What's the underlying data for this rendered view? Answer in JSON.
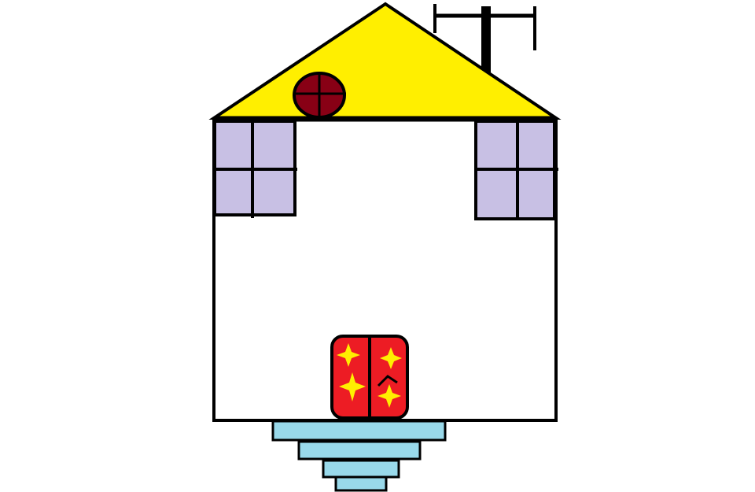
{
  "colors": {
    "background": "#ffffff",
    "outline": "#000000",
    "roof": "#ffef00",
    "window_glass": "#c8c0e4",
    "attic_window": "#880015",
    "door": "#ed1c24",
    "door_stars": "#ffef00",
    "steps": "#99d9ea",
    "wall": "#ffffff"
  },
  "icons": {
    "roof": "roof-shape",
    "antenna": "tv-antenna-icon",
    "attic_window": "round-window-icon",
    "windows": "four-pane-window-icon",
    "door": "star-door-icon",
    "steps": "stairs-icon"
  }
}
